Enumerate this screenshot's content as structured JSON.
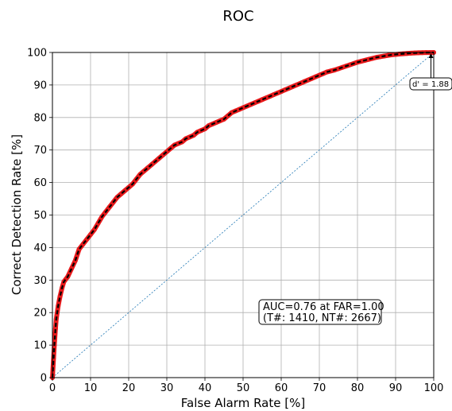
{
  "chart_data": {
    "type": "line",
    "title": "ROC",
    "xlabel": "False Alarm Rate [%]",
    "ylabel": "Correct Detection Rate [%]",
    "xlim": [
      0,
      100
    ],
    "ylim": [
      0,
      100
    ],
    "xticks": [
      "0",
      "10",
      "20",
      "30",
      "40",
      "50",
      "60",
      "70",
      "80",
      "90",
      "100"
    ],
    "yticks": [
      "0",
      "10",
      "20",
      "30",
      "40",
      "50",
      "60",
      "70",
      "80",
      "90",
      "100"
    ],
    "grid": true,
    "series": [
      {
        "color": "#e8191b",
        "line_color": "#000000",
        "x": [
          0,
          0.3,
          0.5,
          0.8,
          1,
          1.5,
          2,
          2.5,
          3,
          4,
          5,
          6,
          7,
          8,
          9,
          10,
          11,
          12,
          13,
          14,
          15,
          16,
          17,
          18,
          19,
          20,
          21,
          22,
          23,
          24,
          25,
          26,
          27,
          28,
          29,
          30,
          31,
          32,
          33,
          34,
          35,
          36,
          37,
          38,
          39,
          40,
          41,
          42,
          43,
          44,
          45,
          46,
          47,
          48,
          49,
          50,
          51,
          52,
          53,
          54,
          55,
          56,
          57,
          58,
          59,
          60,
          61,
          62,
          63,
          64,
          65,
          66,
          67,
          68,
          69,
          70,
          71,
          72,
          73,
          74,
          75,
          76,
          77,
          78,
          79,
          80,
          81,
          82,
          83,
          84,
          85,
          86,
          87,
          88,
          89,
          90,
          91,
          92,
          93,
          94,
          95,
          96,
          97,
          98,
          99,
          100
        ],
        "y": [
          0,
          6,
          10,
          15,
          18,
          22,
          25,
          27.5,
          29.5,
          31,
          33.5,
          36,
          39.5,
          41,
          42.5,
          44,
          45.5,
          47.5,
          49.5,
          51,
          52.5,
          54,
          55.5,
          56.5,
          57.5,
          58.5,
          59.5,
          61,
          62.5,
          63.5,
          64.5,
          65.5,
          66.5,
          67.5,
          68.5,
          69.5,
          70.5,
          71.5,
          72,
          72.5,
          73.5,
          74,
          74.5,
          75.5,
          76,
          76.5,
          77.5,
          78,
          78.5,
          79,
          79.5,
          80.5,
          81.5,
          82,
          82.5,
          83,
          83.5,
          84,
          84.5,
          85,
          85.5,
          86,
          86.5,
          87,
          87.5,
          88,
          88.5,
          89,
          89.5,
          90,
          90.5,
          91,
          91.5,
          92,
          92.5,
          93,
          93.5,
          94,
          94.3,
          94.6,
          95,
          95.4,
          95.8,
          96.2,
          96.6,
          97,
          97.3,
          97.6,
          97.9,
          98.2,
          98.5,
          98.7,
          98.9,
          99.1,
          99.3,
          99.4,
          99.5,
          99.6,
          99.7,
          99.8,
          99.85,
          99.9,
          99.93,
          99.96,
          99.98,
          100
        ]
      },
      {
        "type": "diagonal",
        "color": "#1f77b4",
        "x": [
          0,
          100
        ],
        "y": [
          0,
          100
        ]
      }
    ],
    "annotations": [
      {
        "line1": "AUC=0.76 at FAR=1.00",
        "line2": "(T#: 1410, NT#: 2667)"
      },
      {
        "text": "d' = 1.88"
      }
    ]
  }
}
